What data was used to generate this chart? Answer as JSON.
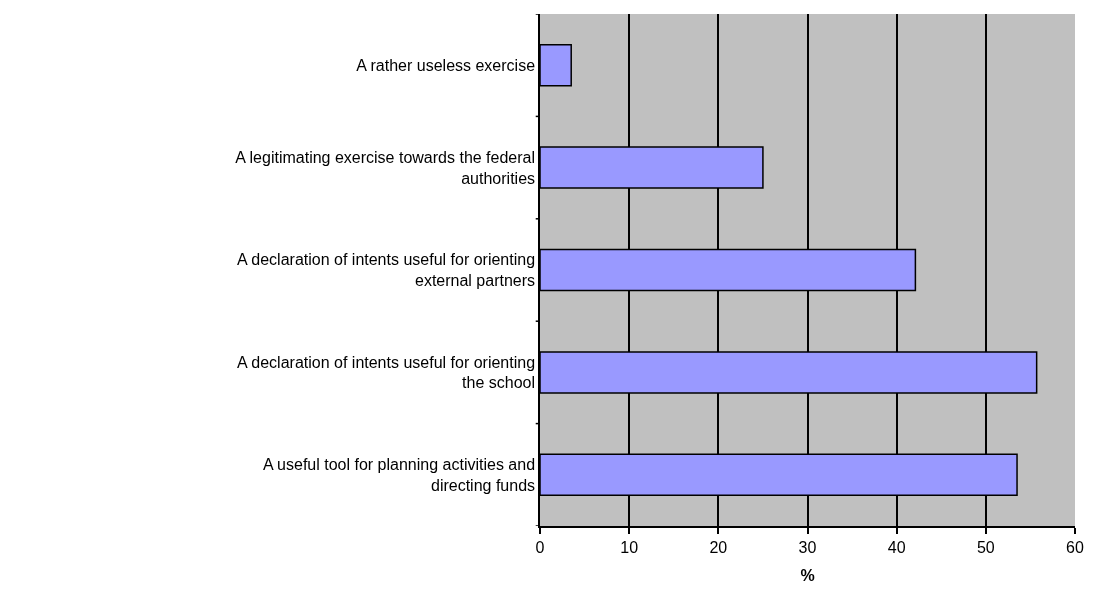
{
  "chart_data": {
    "type": "bar",
    "orientation": "horizontal",
    "xlabel": "%",
    "categories": [
      "A rather useless exercise",
      "A legitimating exercise towards the federal authorities",
      "A declaration of intents useful for orienting external partners",
      "A declaration of intents useful for orienting the school",
      "A useful tool for planning activities and directing funds"
    ],
    "values": [
      3.5,
      25.0,
      42.1,
      55.7,
      53.5
    ],
    "color": "#9999ff",
    "xlim": [
      0,
      60
    ],
    "xticks": [
      0,
      10,
      20,
      30,
      40,
      50,
      60
    ],
    "grid": "x",
    "legend": false
  }
}
